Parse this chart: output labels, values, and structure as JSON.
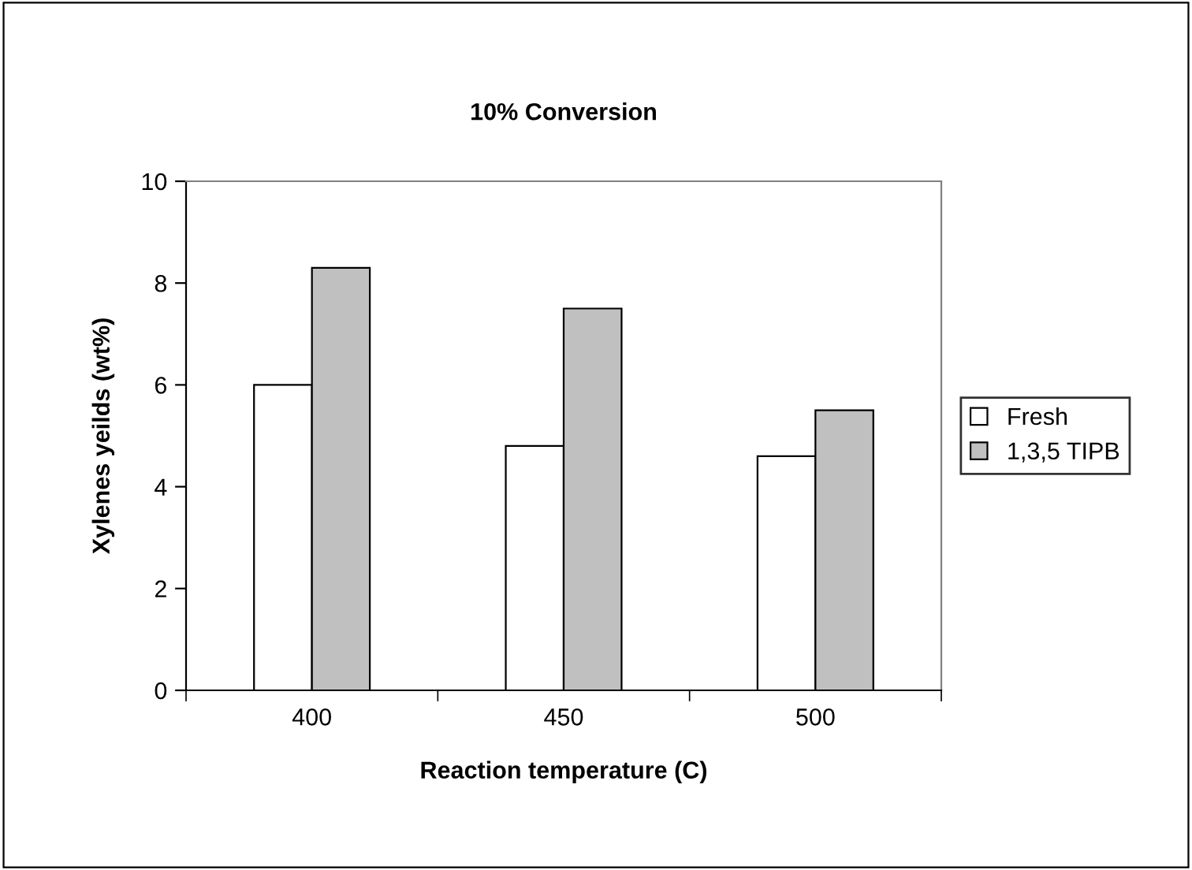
{
  "chart_data": {
    "type": "bar",
    "title": "10% Conversion",
    "xlabel": "Reaction temperature (C)",
    "ylabel": "Xylenes yeilds (wt%)",
    "categories": [
      "400",
      "450",
      "500"
    ],
    "series": [
      {
        "name": "Fresh",
        "color": "#ffffff",
        "values": [
          6.0,
          4.8,
          4.6
        ]
      },
      {
        "name": "1,3,5 TIPB",
        "color": "#c0c0c0",
        "values": [
          8.3,
          7.5,
          5.5
        ]
      }
    ],
    "ylim": [
      0,
      10
    ],
    "yticks": [
      0,
      2,
      4,
      6,
      8,
      10
    ],
    "grid": false,
    "legend": "right"
  }
}
